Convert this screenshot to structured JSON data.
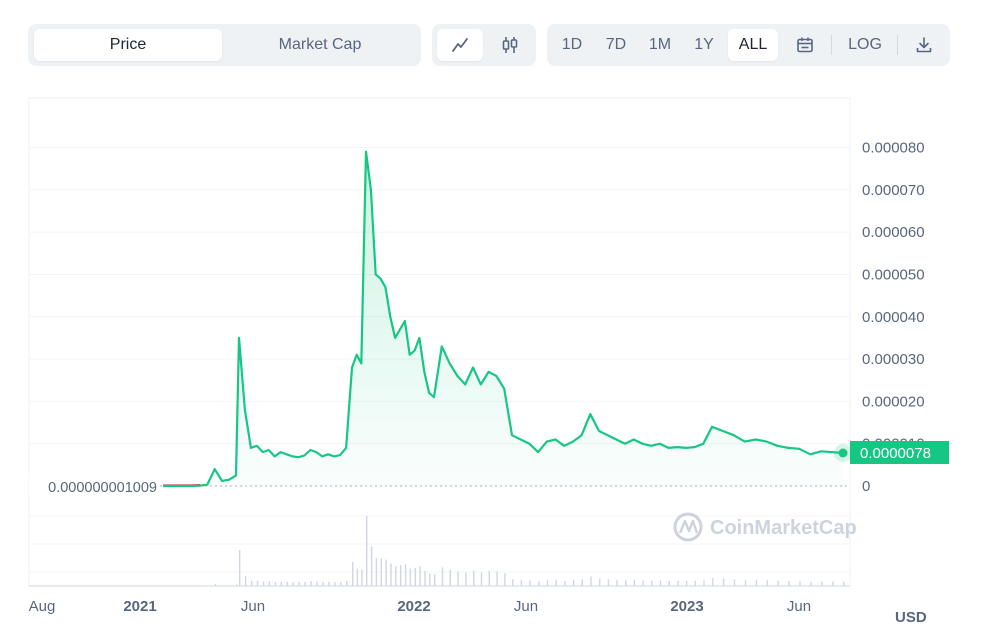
{
  "toolbar": {
    "metric_tabs": [
      {
        "label": "Price",
        "active": true
      },
      {
        "label": "Market Cap",
        "active": false
      }
    ],
    "chart_types": [
      {
        "icon": "line-chart-icon",
        "active": true
      },
      {
        "icon": "candlestick-icon",
        "active": false
      }
    ],
    "ranges": [
      {
        "label": "1D",
        "active": false
      },
      {
        "label": "7D",
        "active": false
      },
      {
        "label": "1M",
        "active": false
      },
      {
        "label": "1Y",
        "active": false
      },
      {
        "label": "ALL",
        "active": true
      }
    ],
    "calendar_icon": "calendar-icon",
    "log_label": "LOG",
    "download_icon": "download-icon"
  },
  "watermark": "CoinMarketCap",
  "currency": "USD",
  "colors": {
    "line": "#16c784",
    "line_early": "#ea3943",
    "accent": "#16c784"
  },
  "chart_data": {
    "type": "area",
    "xlabel": "",
    "ylabel": "",
    "x_ticks": [
      {
        "label": "Aug",
        "bold": false
      },
      {
        "label": "2021",
        "bold": true
      },
      {
        "label": "Jun",
        "bold": false
      },
      {
        "label": "2022",
        "bold": true
      },
      {
        "label": "Jun",
        "bold": false
      },
      {
        "label": "2023",
        "bold": true
      },
      {
        "label": "Jun",
        "bold": false
      }
    ],
    "y_ticks": [
      "0",
      "0.000010",
      "0.000020",
      "0.000030",
      "0.000040",
      "0.000050",
      "0.000060",
      "0.000070",
      "0.000080"
    ],
    "ylim": [
      0,
      9e-05
    ],
    "baseline_label": "0.000000001009",
    "current_price_label": "0.0000078",
    "series": [
      {
        "values": [
          0,
          0,
          0,
          0,
          1e-07,
          3e-07,
          4e-06,
          1.2e-06,
          1.5e-06,
          2.5e-06,
          3.5e-05,
          1.8e-05,
          9e-06,
          9.5e-06,
          8e-06,
          8.5e-06,
          7e-06,
          8e-06,
          7.5e-06,
          7e-06,
          6.8e-06,
          7.2e-06,
          8.5e-06,
          8e-06,
          7e-06,
          7.5e-06,
          7e-06,
          7.3e-06,
          9e-06,
          2.8e-05,
          3.1e-05,
          2.9e-05,
          7.9e-05,
          7e-05,
          5e-05,
          4.9e-05,
          4.7e-05,
          4e-05,
          3.5e-05,
          3.7e-05,
          3.9e-05,
          3.1e-05,
          3.2e-05,
          3.5e-05,
          2.7e-05,
          2.2e-05,
          2.1e-05,
          3.3e-05,
          2.9e-05,
          2.6e-05,
          2.4e-05,
          2.8e-05,
          2.4e-05,
          2.7e-05,
          2.6e-05,
          2.3e-05,
          1.2e-05,
          1.1e-05,
          1e-05,
          8e-06,
          1.05e-05,
          1.1e-05,
          9.5e-06,
          1.05e-05,
          1.2e-05,
          1.7e-05,
          1.3e-05,
          1.2e-05,
          1.1e-05,
          1e-05,
          1.1e-05,
          1e-05,
          9.5e-06,
          1e-05,
          9e-06,
          9.2e-06,
          9e-06,
          9.2e-06,
          1e-05,
          1.4e-05,
          1.3e-05,
          1.2e-05,
          1.05e-05,
          1.1e-05,
          1.05e-05,
          9.5e-06,
          9e-06,
          8.8e-06,
          7.5e-06,
          8.2e-06,
          8e-06,
          7.8e-06
        ]
      }
    ]
  }
}
